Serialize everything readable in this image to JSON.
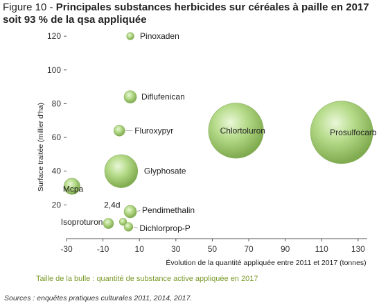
{
  "title": {
    "prefix": "Figure 10 - ",
    "main": "Principales substances herbicides sur céréales à paille en  2017",
    "line2": "soit 93 % de la qsa appliquée"
  },
  "note": "Taille de la bulle : quantité de substance active  appliquée en 2017",
  "source": "Sources : enquêtes pratiques culturales 2011, 2014, 2017.",
  "chart_data": {
    "type": "scatter",
    "subtype": "bubble",
    "xlabel": "Évolution de la quantité appliquée entre 2011 et 2017 (tonnes)",
    "ylabel": "Surface traitée (millier d'ha)",
    "xlim": [
      -30,
      135
    ],
    "ylim": [
      0,
      125
    ],
    "xticks": [
      -30,
      -10,
      10,
      30,
      50,
      70,
      90,
      110,
      130
    ],
    "yticks": [
      20,
      40,
      60,
      80,
      100,
      120
    ],
    "grid": false,
    "bubble_color": "#9ccb6a",
    "points": [
      {
        "name": "Pinoxaden",
        "x": 5,
        "y": 120,
        "size": 1.0
      },
      {
        "name": "Diflufenican",
        "x": 5,
        "y": 84,
        "size": 1.7
      },
      {
        "name": "Fluroxypyr",
        "x": -1,
        "y": 64,
        "size": 1.5
      },
      {
        "name": "Glyphosate",
        "x": 0,
        "y": 40,
        "size": 4.5
      },
      {
        "name": "Mcpa",
        "x": -27,
        "y": 31,
        "size": 2.2
      },
      {
        "name": "Pendimethalin",
        "x": 5,
        "y": 16,
        "size": 1.7
      },
      {
        "name": "2,4d",
        "x": 1,
        "y": 10,
        "size": 1.0
      },
      {
        "name": "Isoproturon",
        "x": -7,
        "y": 9,
        "size": 1.4
      },
      {
        "name": "Dichlorprop-P",
        "x": 4,
        "y": 7,
        "size": 1.2
      },
      {
        "name": "Chlortoluron",
        "x": 63,
        "y": 64,
        "size": 7.5
      },
      {
        "name": "Prosulfocarb",
        "x": 121,
        "y": 63,
        "size": 8.5
      }
    ]
  }
}
